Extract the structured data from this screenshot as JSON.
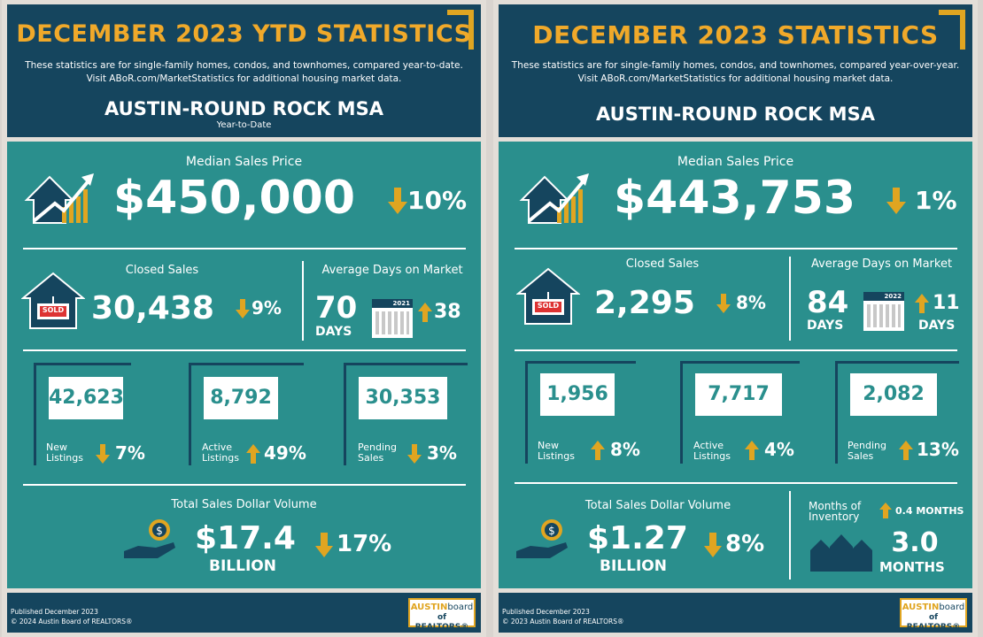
{
  "colors": {
    "navy": "#15455e",
    "teal": "#2a8f8d",
    "gold": "#e0a521",
    "down": "#e0a521",
    "up": "#e0a521"
  },
  "left": {
    "title": "DECEMBER 2023 YTD STATISTICS",
    "subtitle_1": "These statistics are for single-family homes, condos, and townhomes, compared year-to-date.",
    "subtitle_2": "Visit ABoR.com/MarketStatistics for additional housing market data.",
    "msa": "AUSTIN-ROUND ROCK MSA",
    "period": "Year-to-Date",
    "median_label": "Median Sales Price",
    "median_value": "$450,000",
    "median_change": "10%",
    "closed_label": "Closed Sales",
    "closed_value": "30,438",
    "closed_change": "9%",
    "sold_sign": "SOLD",
    "dom_label": "Average Days on Market",
    "dom_value": "70",
    "dom_unit": "DAYS",
    "cal_year": "2021",
    "dom_change": "38",
    "new_value": "42,623",
    "new_label_1": "New",
    "new_label_2": "Listings",
    "new_change": "7%",
    "active_value": "8,792",
    "active_label_1": "Active",
    "active_label_2": "Listings",
    "active_change": "49%",
    "pending_value": "30,353",
    "pending_label_1": "Pending",
    "pending_label_2": "Sales",
    "pending_change": "3%",
    "volume_label": "Total Sales Dollar Volume",
    "volume_value": "$17.4",
    "volume_unit": "BILLION",
    "volume_change": "17%",
    "published": "Published December 2023",
    "copyright": "© 2024 Austin Board of REALTORS®",
    "logo_1a": "AUSTIN",
    "logo_1b": "board",
    "logo_2": "of REALTORS®"
  },
  "right": {
    "title": "DECEMBER 2023 STATISTICS",
    "subtitle_1": "These statistics are for single-family homes, condos, and townhomes, compared year-over-year.",
    "subtitle_2": "Visit ABoR.com/MarketStatistics for additional housing market data.",
    "msa": "AUSTIN-ROUND ROCK MSA",
    "median_label": "Median Sales Price",
    "median_value": "$443,753",
    "median_change": "1%",
    "closed_label": "Closed Sales",
    "closed_value": "2,295",
    "closed_change": "8%",
    "sold_sign": "SOLD",
    "dom_label": "Average Days on Market",
    "dom_value": "84",
    "dom_unit": "DAYS",
    "cal_year": "2022",
    "dom_change": "11",
    "dom_change_unit": "DAYS",
    "new_value": "1,956",
    "new_label_1": "New",
    "new_label_2": "Listings",
    "new_change": "8%",
    "active_value": "7,717",
    "active_label_1": "Active",
    "active_label_2": "Listings",
    "active_change": "4%",
    "pending_value": "2,082",
    "pending_label_1": "Pending",
    "pending_label_2": "Sales",
    "pending_change": "13%",
    "volume_label": "Total Sales Dollar Volume",
    "volume_value": "$1.27",
    "volume_unit": "BILLION",
    "volume_change": "8%",
    "moi_label_1": "Months of",
    "moi_label_2": "Inventory",
    "moi_change": "0.4 MONTHS",
    "moi_value": "3.0",
    "moi_unit": "MONTHS",
    "published": "Published December 2023",
    "copyright": "© 2023 Austin Board of REALTORS®",
    "logo_1a": "AUSTIN",
    "logo_1b": "board",
    "logo_2": "of REALTORS®"
  }
}
